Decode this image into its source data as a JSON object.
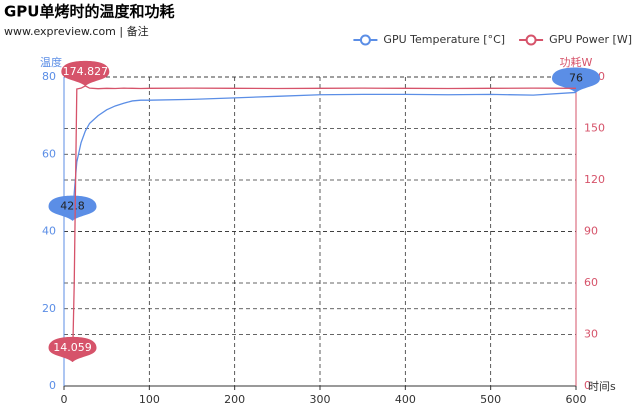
{
  "chart_data": {
    "type": "line",
    "title": "GPU单烤时的温度和功耗",
    "subtitle": "www.expreview.com | 备注",
    "x_label": "时间s",
    "y_label": "温度",
    "y2_label": "功耗W",
    "x": [
      10,
      12,
      15,
      20,
      25,
      30,
      40,
      50,
      60,
      70,
      80,
      90,
      100,
      150,
      200,
      250,
      300,
      350,
      400,
      450,
      500,
      550,
      600
    ],
    "series": [
      {
        "name": "GPU Temperature [°C]",
        "color": "#5b8ee6",
        "values": [
          42.8,
          50,
          58,
          63,
          66,
          68,
          70,
          71.5,
          72.5,
          73.2,
          73.8,
          74.0,
          74.0,
          74.2,
          74.6,
          75.0,
          75.4,
          75.5,
          75.5,
          75.4,
          75.5,
          75.3,
          76
        ]
      },
      {
        "name": "GPU Power [W]",
        "color": "#d6536a",
        "axis": "y2",
        "values": [
          14.059,
          60,
          173,
          173.5,
          174.827,
          173.5,
          173.2,
          173.4,
          173.3,
          173.5,
          173.4,
          173.3,
          173.4,
          173.5,
          173.4,
          173.3,
          173.4,
          173.5,
          173.4,
          173.3,
          173.4,
          173.5,
          173.4
        ]
      }
    ],
    "xlim": [
      0,
      600
    ],
    "xticks": [
      0,
      100,
      200,
      300,
      400,
      500,
      600
    ],
    "ylim": [
      0,
      80
    ],
    "yticks": [
      0,
      20,
      40,
      60,
      80
    ],
    "y2lim": [
      0,
      180
    ],
    "y2ticks": [
      0,
      30,
      60,
      90,
      120,
      150,
      180
    ],
    "grid": true,
    "legend": "top-right",
    "mark_points": true
  }
}
